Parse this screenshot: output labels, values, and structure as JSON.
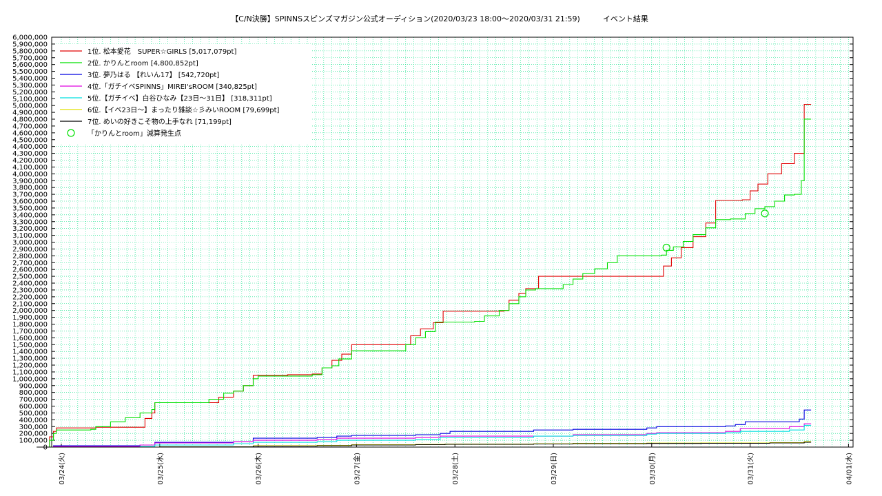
{
  "chart_data": {
    "type": "line",
    "title": "【C/N決勝】SPINNSスピンズマガジン公式オーディション(2020/03/23 18:00〜2020/03/31 21:59)　　　イベント結果",
    "ylim": [
      0,
      6000000
    ],
    "y_ticks": [
      "0",
      "100,000",
      "200,000",
      "300,000",
      "400,000",
      "500,000",
      "600,000",
      "700,000",
      "800,000",
      "900,000",
      "1,000,000",
      "1,100,000",
      "1,200,000",
      "1,300,000",
      "1,400,000",
      "1,500,000",
      "1,600,000",
      "1,700,000",
      "1,800,000",
      "1,900,000",
      "2,000,000",
      "2,100,000",
      "2,200,000",
      "2,300,000",
      "2,400,000",
      "2,500,000",
      "2,600,000",
      "2,700,000",
      "2,800,000",
      "2,900,000",
      "3,000,000",
      "3,100,000",
      "3,200,000",
      "3,300,000",
      "3,400,000",
      "3,500,000",
      "3,600,000",
      "3,700,000",
      "3,800,000",
      "3,900,000",
      "4,000,000",
      "4,100,000",
      "4,200,000",
      "4,300,000",
      "4,400,000",
      "4,500,000",
      "4,600,000",
      "4,700,000",
      "4,800,000",
      "4,900,000",
      "5,000,000",
      "5,100,000",
      "5,200,000",
      "5,300,000",
      "5,400,000",
      "5,500,000",
      "5,600,000",
      "5,700,000",
      "5,800,000",
      "5,900,000",
      "6,000,000"
    ],
    "x_ticks": [
      "03/24(火)",
      "03/25(水)",
      "03/26(木)",
      "03/27(金)",
      "03/28(土)",
      "03/29(日)",
      "03/30(月)",
      "03/31(火)",
      "04/01(水)"
    ],
    "xlim_days": [
      -0.25,
      8.0
    ],
    "grid": true,
    "legend_position": "top-left",
    "series": [
      {
        "name": "1位. 松本愛花　SUPER☆GIRLS [5,017,079pt]",
        "color": "#e00000",
        "points": [
          [
            -0.25,
            0
          ],
          [
            -0.15,
            0
          ],
          [
            -0.12,
            150000
          ],
          [
            -0.08,
            230000
          ],
          [
            -0.05,
            280000
          ],
          [
            0.1,
            280000
          ],
          [
            0.35,
            290000
          ],
          [
            0.75,
            290000
          ],
          [
            0.85,
            420000
          ],
          [
            0.92,
            500000
          ],
          [
            0.95,
            650000
          ],
          [
            1.5,
            650000
          ],
          [
            1.6,
            730000
          ],
          [
            1.75,
            820000
          ],
          [
            1.85,
            900000
          ],
          [
            1.95,
            1050000
          ],
          [
            2.3,
            1060000
          ],
          [
            2.55,
            1070000
          ],
          [
            2.65,
            1160000
          ],
          [
            2.75,
            1270000
          ],
          [
            2.85,
            1360000
          ],
          [
            2.95,
            1500000
          ],
          [
            3.3,
            1500000
          ],
          [
            3.5,
            1500000
          ],
          [
            3.55,
            1630000
          ],
          [
            3.65,
            1730000
          ],
          [
            3.78,
            1820000
          ],
          [
            3.88,
            1990000
          ],
          [
            4.3,
            1990000
          ],
          [
            4.5,
            2000000
          ],
          [
            4.55,
            2150000
          ],
          [
            4.65,
            2250000
          ],
          [
            4.72,
            2320000
          ],
          [
            4.85,
            2500000
          ],
          [
            5.5,
            2500000
          ],
          [
            6.05,
            2500000
          ],
          [
            6.12,
            2650000
          ],
          [
            6.2,
            2770000
          ],
          [
            6.3,
            2920000
          ],
          [
            6.42,
            3080000
          ],
          [
            6.55,
            3280000
          ],
          [
            6.65,
            3610000
          ],
          [
            6.92,
            3620000
          ],
          [
            7.0,
            3750000
          ],
          [
            7.08,
            3850000
          ],
          [
            7.18,
            4000000
          ],
          [
            7.32,
            4150000
          ],
          [
            7.45,
            4300000
          ],
          [
            7.55,
            5017079
          ],
          [
            7.62,
            5017079
          ]
        ]
      },
      {
        "name": "2位. かりんとroom [4,800,852pt]",
        "color": "#00e000",
        "points": [
          [
            -0.25,
            0
          ],
          [
            -0.15,
            0
          ],
          [
            -0.12,
            100000
          ],
          [
            -0.08,
            200000
          ],
          [
            -0.05,
            250000
          ],
          [
            0.1,
            250000
          ],
          [
            0.3,
            260000
          ],
          [
            0.35,
            300000
          ],
          [
            0.5,
            370000
          ],
          [
            0.65,
            430000
          ],
          [
            0.8,
            500000
          ],
          [
            0.92,
            550000
          ],
          [
            0.95,
            650000
          ],
          [
            1.4,
            650000
          ],
          [
            1.5,
            700000
          ],
          [
            1.65,
            790000
          ],
          [
            1.75,
            820000
          ],
          [
            1.85,
            900000
          ],
          [
            1.95,
            1000000
          ],
          [
            2.0,
            1040000
          ],
          [
            2.3,
            1040000
          ],
          [
            2.55,
            1060000
          ],
          [
            2.65,
            1160000
          ],
          [
            2.75,
            1190000
          ],
          [
            2.82,
            1290000
          ],
          [
            2.95,
            1410000
          ],
          [
            3.3,
            1410000
          ],
          [
            3.5,
            1500000
          ],
          [
            3.6,
            1600000
          ],
          [
            3.7,
            1690000
          ],
          [
            3.8,
            1830000
          ],
          [
            4.2,
            1840000
          ],
          [
            4.3,
            1920000
          ],
          [
            4.45,
            2000000
          ],
          [
            4.55,
            2100000
          ],
          [
            4.65,
            2200000
          ],
          [
            4.72,
            2300000
          ],
          [
            4.82,
            2320000
          ],
          [
            5.0,
            2320000
          ],
          [
            5.1,
            2380000
          ],
          [
            5.2,
            2460000
          ],
          [
            5.3,
            2540000
          ],
          [
            5.42,
            2610000
          ],
          [
            5.55,
            2700000
          ],
          [
            5.65,
            2800000
          ],
          [
            5.85,
            2800000
          ],
          [
            6.1,
            2810000
          ],
          [
            6.15,
            2880000
          ],
          [
            6.22,
            2930000
          ],
          [
            6.32,
            3010000
          ],
          [
            6.42,
            3110000
          ],
          [
            6.55,
            3210000
          ],
          [
            6.65,
            3330000
          ],
          [
            6.8,
            3340000
          ],
          [
            6.95,
            3420000
          ],
          [
            7.05,
            3490000
          ],
          [
            7.15,
            3520000
          ],
          [
            7.25,
            3600000
          ],
          [
            7.35,
            3690000
          ],
          [
            7.45,
            3700000
          ],
          [
            7.52,
            3900000
          ],
          [
            7.55,
            4800852
          ],
          [
            7.62,
            4800852
          ]
        ]
      },
      {
        "name": "3位. 夢乃はる 【れいん17】 [542,720pt]",
        "color": "#0000e0",
        "points": [
          [
            -0.25,
            0
          ],
          [
            -0.12,
            0
          ],
          [
            -0.08,
            20000
          ],
          [
            0.5,
            20000
          ],
          [
            0.8,
            30000
          ],
          [
            0.95,
            70000
          ],
          [
            1.5,
            70000
          ],
          [
            1.75,
            80000
          ],
          [
            1.95,
            130000
          ],
          [
            2.6,
            140000
          ],
          [
            2.8,
            160000
          ],
          [
            2.95,
            170000
          ],
          [
            3.6,
            180000
          ],
          [
            3.85,
            200000
          ],
          [
            3.95,
            230000
          ],
          [
            4.8,
            250000
          ],
          [
            5.2,
            260000
          ],
          [
            5.95,
            280000
          ],
          [
            6.05,
            300000
          ],
          [
            6.75,
            310000
          ],
          [
            6.85,
            330000
          ],
          [
            6.95,
            370000
          ],
          [
            7.4,
            370000
          ],
          [
            7.5,
            410000
          ],
          [
            7.55,
            542720
          ],
          [
            7.62,
            542720
          ]
        ]
      },
      {
        "name": "4位.「ガチイベSPINNS」MIREI'sROOM [340,825pt]",
        "color": "#e000e0",
        "points": [
          [
            -0.25,
            0
          ],
          [
            -0.12,
            0
          ],
          [
            -0.08,
            10000
          ],
          [
            0.5,
            10000
          ],
          [
            0.8,
            30000
          ],
          [
            0.95,
            60000
          ],
          [
            1.5,
            60000
          ],
          [
            1.75,
            80000
          ],
          [
            1.95,
            100000
          ],
          [
            2.6,
            110000
          ],
          [
            2.8,
            130000
          ],
          [
            3.0,
            130000
          ],
          [
            3.6,
            140000
          ],
          [
            3.85,
            160000
          ],
          [
            4.8,
            160000
          ],
          [
            5.2,
            180000
          ],
          [
            5.95,
            200000
          ],
          [
            6.05,
            210000
          ],
          [
            6.75,
            230000
          ],
          [
            6.9,
            270000
          ],
          [
            7.4,
            300000
          ],
          [
            7.55,
            340825
          ],
          [
            7.62,
            340825
          ]
        ]
      },
      {
        "name": "5位.【ガチイベ】白谷ひなみ【23日〜31日】 [318,311pt]",
        "color": "#00e0e0",
        "points": [
          [
            -0.25,
            0
          ],
          [
            -0.12,
            0
          ],
          [
            0.5,
            0
          ],
          [
            0.8,
            10000
          ],
          [
            0.95,
            30000
          ],
          [
            1.5,
            30000
          ],
          [
            1.75,
            50000
          ],
          [
            1.95,
            70000
          ],
          [
            2.6,
            80000
          ],
          [
            2.8,
            100000
          ],
          [
            3.0,
            100000
          ],
          [
            3.6,
            110000
          ],
          [
            3.85,
            140000
          ],
          [
            4.8,
            160000
          ],
          [
            5.2,
            170000
          ],
          [
            5.95,
            190000
          ],
          [
            6.05,
            200000
          ],
          [
            6.75,
            210000
          ],
          [
            6.9,
            230000
          ],
          [
            7.4,
            250000
          ],
          [
            7.55,
            318311
          ],
          [
            7.62,
            318311
          ]
        ]
      },
      {
        "name": "6位.【イベ23日〜】まったり雑談☆彡みいROOM [79,699pt]",
        "color": "#e0e000",
        "points": [
          [
            -0.25,
            0
          ],
          [
            -0.12,
            0
          ],
          [
            0.5,
            0
          ],
          [
            1.0,
            5000
          ],
          [
            1.95,
            20000
          ],
          [
            2.6,
            25000
          ],
          [
            2.95,
            35000
          ],
          [
            3.6,
            40000
          ],
          [
            3.9,
            45000
          ],
          [
            4.8,
            48000
          ],
          [
            5.2,
            55000
          ],
          [
            5.95,
            58000
          ],
          [
            6.5,
            60000
          ],
          [
            7.2,
            65000
          ],
          [
            7.55,
            79699
          ],
          [
            7.62,
            79699
          ]
        ]
      },
      {
        "name": "7位. めいの好きこそ物の上手なれ [71,199pt]",
        "color": "#000000",
        "points": [
          [
            -0.25,
            0
          ],
          [
            -0.12,
            0
          ],
          [
            0.5,
            0
          ],
          [
            1.0,
            3000
          ],
          [
            1.95,
            15000
          ],
          [
            2.6,
            20000
          ],
          [
            2.95,
            30000
          ],
          [
            3.6,
            35000
          ],
          [
            3.9,
            40000
          ],
          [
            4.8,
            45000
          ],
          [
            5.2,
            50000
          ],
          [
            5.95,
            53000
          ],
          [
            6.5,
            55000
          ],
          [
            7.2,
            60000
          ],
          [
            7.55,
            71199
          ],
          [
            7.62,
            71199
          ]
        ]
      }
    ],
    "markers": {
      "name": "「かりんとroom」減算発生点",
      "color": "#00e000",
      "points": [
        [
          6.15,
          2920000
        ],
        [
          7.15,
          3420000
        ]
      ]
    }
  }
}
